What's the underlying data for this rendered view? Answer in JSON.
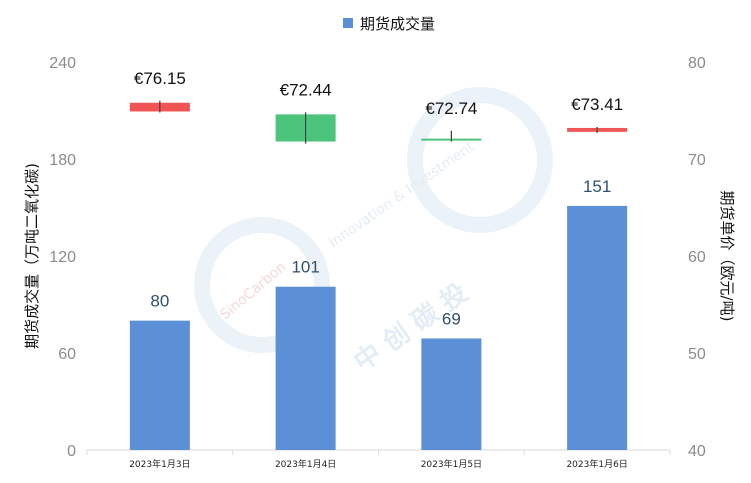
{
  "chart_data": {
    "type": "bar+candlestick",
    "legend": {
      "label": "期货成交量",
      "color": "#5b8fd6",
      "position": "top"
    },
    "categories": [
      "2023年1月3日",
      "2023年1月4日",
      "2023年1月5日",
      "2023年1月6日"
    ],
    "y_left": {
      "label": "期货成交量（万吨二氧化碳)",
      "range": [
        0,
        240
      ],
      "ticks": [
        0,
        60,
        120,
        180,
        240
      ]
    },
    "y_right": {
      "label": "期货单价（欧元/吨)",
      "range": [
        40,
        80
      ],
      "ticks": [
        40,
        50,
        60,
        70,
        80
      ]
    },
    "bars": {
      "name": "期货成交量",
      "values": [
        80,
        101,
        69,
        151
      ],
      "value_labels": [
        "80",
        "101",
        "69",
        "151"
      ],
      "color": "#5b8fd6"
    },
    "candles": [
      {
        "open": 75.8,
        "close": 74.9,
        "high": 76.0,
        "low": 74.8,
        "label": "€76.15",
        "color": "#f05454"
      },
      {
        "open": 71.8,
        "close": 74.6,
        "high": 74.8,
        "low": 71.6,
        "label": "€72.44",
        "color": "#4cc47c"
      },
      {
        "open": 72.1,
        "close": 72.0,
        "high": 72.9,
        "low": 71.8,
        "label": "€72.74",
        "color": "#4cc47c"
      },
      {
        "open": 73.2,
        "close": 72.8,
        "high": 73.3,
        "low": 72.7,
        "label": "€73.41",
        "color": "#f05454"
      }
    ]
  },
  "watermark": {
    "brand_en": "SinoCarbon",
    "tagline": "Innovation & Investment",
    "brand_cn": "中 创 碳 投"
  }
}
